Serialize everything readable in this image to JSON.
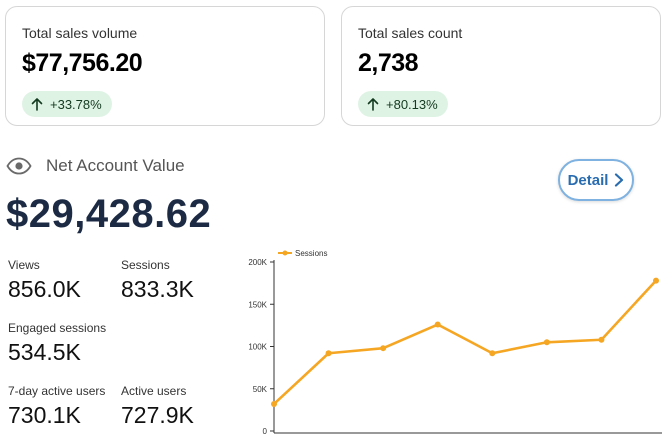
{
  "cards": [
    {
      "title": "Total sales volume",
      "value": "$77,756.20",
      "delta": "+33.78%"
    },
    {
      "title": "Total sales count",
      "value": "2,738",
      "delta": "+80.13%"
    }
  ],
  "net_account": {
    "label": "Net Account Value",
    "value": "$29,428.62",
    "detail_label": "Detail",
    "icons": [
      "eye-icon",
      "chevron-right-icon",
      "arrow-up-icon"
    ]
  },
  "stats": {
    "views": {
      "label": "Views",
      "value": "856.0K"
    },
    "sessions": {
      "label": "Sessions",
      "value": "833.3K"
    },
    "engaged": {
      "label": "Engaged sessions",
      "value": "534.5K"
    },
    "active7": {
      "label": "7-day active users",
      "value": "730.1K"
    },
    "active": {
      "label": "Active users",
      "value": "727.9K"
    }
  },
  "colors": {
    "accent": "#f5a623",
    "delta_bg": "#dff3e5",
    "nav_value": "#1c2a44",
    "detail": "#2a6cb0"
  },
  "chart_data": {
    "type": "line",
    "series": [
      {
        "name": "Sessions",
        "values": [
          32000,
          92000,
          98000,
          126000,
          92000,
          105000,
          108000,
          178000
        ]
      }
    ],
    "x": [
      1,
      2,
      3,
      4,
      5,
      6,
      7,
      8
    ],
    "ylim": [
      0,
      200000
    ],
    "yticks": [
      "0",
      "50K",
      "100K",
      "150K",
      "200K"
    ],
    "ytick_values": [
      0,
      50000,
      100000,
      150000,
      200000
    ],
    "legend_position": "top-left",
    "grid": false
  }
}
